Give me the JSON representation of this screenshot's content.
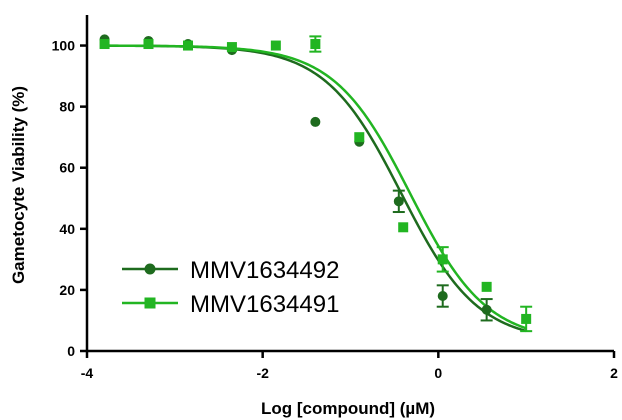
{
  "chart_data": {
    "type": "scatter",
    "xlabel": "Log [compound]  (µM)",
    "ylabel": "Gametocyte Viability (%)",
    "xlim": [
      -4,
      2
    ],
    "ylim": [
      0,
      110
    ],
    "x_ticks": [
      "-4",
      "-2",
      "0",
      "2"
    ],
    "y_ticks": [
      "0",
      "20",
      "40",
      "60",
      "80",
      "100"
    ],
    "legend_position": "lower-left",
    "series": [
      {
        "name": "MMV1634492",
        "color": "#1e6b1e",
        "marker": "circle",
        "points": [
          {
            "x": -3.8,
            "y": 102,
            "err": 0.5
          },
          {
            "x": -3.3,
            "y": 101.5,
            "err": 0.5
          },
          {
            "x": -2.85,
            "y": 100.5,
            "err": 0.5
          },
          {
            "x": -2.35,
            "y": 98.5,
            "err": 0.5
          },
          {
            "x": -1.4,
            "y": 75,
            "err": 0
          },
          {
            "x": -0.9,
            "y": 68.5,
            "err": 0.5
          },
          {
            "x": -0.45,
            "y": 49,
            "err": 3.5
          },
          {
            "x": 0.05,
            "y": 18,
            "err": 3.5
          },
          {
            "x": 0.55,
            "y": 13.5,
            "err": 3.5
          }
        ],
        "fit": {
          "top": 100,
          "bottom": 3,
          "logEC50": -0.42,
          "hill": 1.0
        }
      },
      {
        "name": "MMV1634491",
        "color": "#22b522",
        "marker": "square",
        "points": [
          {
            "x": -3.8,
            "y": 100.5,
            "err": 0.5
          },
          {
            "x": -3.3,
            "y": 100.5,
            "err": 0.5
          },
          {
            "x": -2.85,
            "y": 100,
            "err": 0.5
          },
          {
            "x": -2.35,
            "y": 99.5,
            "err": 0.5
          },
          {
            "x": -1.85,
            "y": 100,
            "err": 0.5
          },
          {
            "x": -1.4,
            "y": 100.5,
            "err": 2.5
          },
          {
            "x": -0.9,
            "y": 70,
            "err": 0.5
          },
          {
            "x": -0.4,
            "y": 40.5,
            "err": 0.5
          },
          {
            "x": 0.05,
            "y": 30,
            "err": 4
          },
          {
            "x": 0.55,
            "y": 21,
            "err": 0.5
          },
          {
            "x": 1.0,
            "y": 10.5,
            "err": 4
          }
        ],
        "fit": {
          "top": 100,
          "bottom": 3,
          "logEC50": -0.32,
          "hill": 1.0
        }
      }
    ]
  }
}
